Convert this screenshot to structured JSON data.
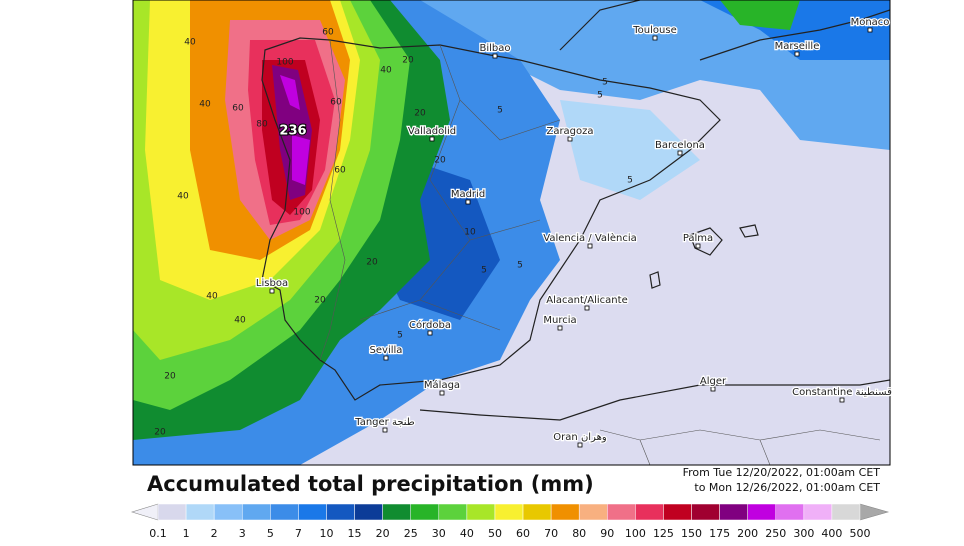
{
  "map": {
    "cities": [
      "Monaco",
      "Toulouse",
      "Marseille",
      "Bilbao",
      "Valladolid",
      "Zaragoza",
      "Barcelona",
      "Madrid",
      "Valencia / València",
      "Palma",
      "Lisboa",
      "Alacant/Alicante",
      "Murcia",
      "Córdoba",
      "Sevilla",
      "Málaga",
      "Alger",
      "Tanger طنجة",
      "Oran وهران",
      "Constantine قسنطينة"
    ],
    "max_label": "236",
    "contour_labels": [
      "40",
      "40",
      "40",
      "40",
      "40",
      "20",
      "20",
      "60",
      "80",
      "100",
      "60",
      "40",
      "60",
      "20",
      "20",
      "20",
      "60",
      "100",
      "20",
      "5",
      "5",
      "5",
      "5",
      "5",
      "5",
      "10",
      "20",
      "5"
    ]
  },
  "title": "Accumulated total precipitation (mm)",
  "period": {
    "from": "From Tue 12/20/2022, 01:00am CET",
    "to": "to Mon 12/26/2022, 01:00am CET"
  },
  "legend": {
    "labels": [
      0.1,
      1,
      2,
      3,
      5,
      7,
      10,
      15,
      20,
      25,
      30,
      40,
      50,
      60,
      70,
      80,
      90,
      100,
      125,
      150,
      175,
      200,
      250,
      300,
      400,
      500
    ],
    "colors": [
      "#d8d8ec",
      "#b0d8f8",
      "#88c0f8",
      "#60a8f0",
      "#3c8ce8",
      "#1a78e8",
      "#1458c0",
      "#0c3c98",
      "#108c30",
      "#28b428",
      "#5cd23c",
      "#a8e628",
      "#f8f030",
      "#e8c800",
      "#f09000",
      "#f8b080",
      "#f07088",
      "#e8305c",
      "#c00020",
      "#a00030",
      "#800080",
      "#c000e0",
      "#e070f0",
      "#f0b0f8",
      "#d8d8d8"
    ],
    "under_color": "#f0f0f8",
    "over_color": "#a8a8a8"
  }
}
